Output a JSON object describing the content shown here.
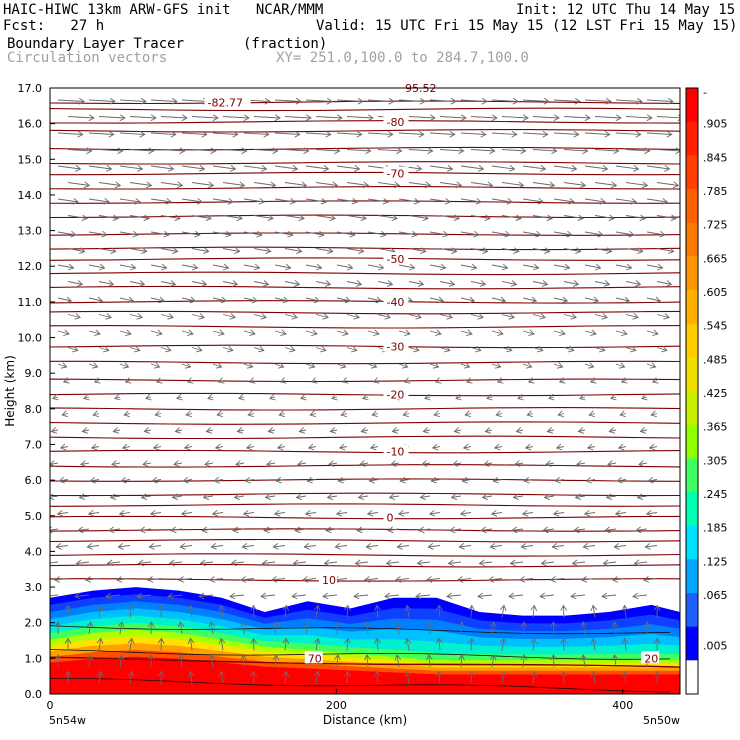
{
  "header": {
    "line1_left": "HAIC-HIWC 13km ARW-GFS init   NCAR/MMM",
    "line1_right": "Init: 12 UTC Thu 14 May 15",
    "line2_left": "Fcst:   27 h",
    "line2_right": "Valid: 15 UTC Fri 15 May 15 (12 LST Fri 15 May 15)",
    "line3_left": "Boundary Layer Tracer       (fraction)",
    "line4_left": "Circulation vectors",
    "line4_right": "XY= 251.0,100.0 to 284.7,100.0"
  },
  "chart_data": {
    "type": "heatmap",
    "xlabel": "Distance (km)",
    "ylabel": "Height (km)",
    "xlim": [
      0,
      440
    ],
    "ylim": [
      0,
      17
    ],
    "x_ticks": [
      "0",
      "200",
      "400"
    ],
    "x_tick_values": [
      0,
      200,
      400
    ],
    "x_end_labels": [
      "5n54w",
      "5n50w"
    ],
    "y_ticks": [
      "0.0",
      "1.0",
      "2.0",
      "3.0",
      "4.0",
      "5.0",
      "6.0",
      "7.0",
      "8.0",
      "9.0",
      "10.0",
      "11.0",
      "12.0",
      "13.0",
      "14.0",
      "15.0",
      "16.0",
      "17.0"
    ],
    "colorbar": {
      "labels": [
        "-",
        ".905",
        ".845",
        ".785",
        ".725",
        ".665",
        ".605",
        ".545",
        ".485",
        ".425",
        ".365",
        ".305",
        ".245",
        ".185",
        ".125",
        ".065",
        ".005"
      ],
      "colors_top_to_bottom": [
        "#ff0000",
        "#ff2000",
        "#ff4000",
        "#ff6000",
        "#ff7a00",
        "#ff9600",
        "#ffb000",
        "#ffcc00",
        "#f0e000",
        "#c8f000",
        "#90ff00",
        "#40ff60",
        "#00ffb0",
        "#00e0ff",
        "#00a8ff",
        "#2060ff",
        "#0000ff"
      ],
      "lowest_color": "#ffffff"
    },
    "tracer_profile": {
      "x_km": [
        0,
        30,
        60,
        90,
        120,
        150,
        180,
        210,
        240,
        270,
        300,
        330,
        360,
        390,
        420,
        440
      ],
      "top_km": [
        2.7,
        2.9,
        3.0,
        2.9,
        2.7,
        2.3,
        2.6,
        2.4,
        2.7,
        2.7,
        2.3,
        2.2,
        2.2,
        2.3,
        2.5,
        2.3
      ],
      "half_km": [
        1.6,
        1.8,
        1.9,
        1.8,
        1.6,
        1.4,
        1.3,
        1.2,
        1.1,
        1.0,
        1.0,
        1.0,
        1.0,
        1.0,
        1.0,
        1.0
      ]
    },
    "temperature_contours": [
      {
        "label": "-82.77",
        "height_km": 16.6,
        "label_x_km": 110
      },
      {
        "label": "-80",
        "height_km": 16.05,
        "label_x_km": 235
      },
      {
        "label": "-70",
        "height_km": 14.6,
        "label_x_km": 235
      },
      {
        "label": "-50",
        "height_km": 12.2,
        "label_x_km": 235
      },
      {
        "label": "-40",
        "height_km": 11.0,
        "label_x_km": 235
      },
      {
        "label": "-30",
        "height_km": 9.75,
        "label_x_km": 235
      },
      {
        "label": "-20",
        "height_km": 8.4,
        "label_x_km": 235
      },
      {
        "label": "-10",
        "height_km": 6.8,
        "label_x_km": 235
      },
      {
        "label": "0",
        "height_km": 4.95,
        "label_x_km": 235
      },
      {
        "label": "10",
        "height_km": 3.2,
        "label_x_km": 190
      },
      {
        "label": "70",
        "height_km": 1.0,
        "label_x_km": 180
      },
      {
        "label": "20",
        "height_km": 1.0,
        "label_x_km": 415
      }
    ],
    "top_partial_label": "95.52",
    "extra_contour_levels_km": [
      16.4,
      15.8,
      15.3,
      14.9,
      14.2,
      13.8,
      13.4,
      12.9,
      12.5,
      11.8,
      11.4,
      10.7,
      10.3,
      9.3,
      8.8,
      8.0,
      7.6,
      7.2,
      6.4,
      6.0,
      5.6,
      5.3,
      4.6,
      4.3,
      3.9,
      3.6
    ]
  },
  "vectors": {
    "upper_direction": "east",
    "lower_direction": "west",
    "turning_height_km": 9.0,
    "boundary_layer_vectors": "vertical"
  }
}
